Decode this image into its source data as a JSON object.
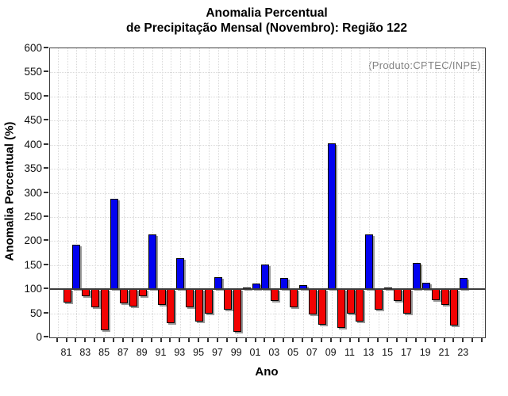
{
  "title": {
    "line1": "Anomalia Percentual",
    "line2": "de Precipitação Mensal (Novembro): Região 122"
  },
  "annotation": "(Produto:CPTEC/INPE)",
  "axes": {
    "y_label": "Anomalia Percentual (%)",
    "x_label": "Ano",
    "x_tick_labels": [
      "81",
      "83",
      "85",
      "87",
      "89",
      "91",
      "93",
      "95",
      "97",
      "99",
      "01",
      "03",
      "05",
      "07",
      "09",
      "11",
      "13",
      "15",
      "17",
      "19",
      "21",
      "23"
    ]
  },
  "colors": {
    "bar_above": "#0202f0",
    "bar_below": "#f20202",
    "baseline": "#3c3c3c",
    "grid": "#d9d9d9",
    "annotation_text": "#828282",
    "tick": "#333333"
  },
  "chart_data": {
    "type": "bar",
    "title": "Anomalia Percentual de Precipitação Mensal (Novembro): Região 122",
    "xlabel": "Ano",
    "ylabel": "Anomalia Percentual (%)",
    "annotation": "(Produto:CPTEC/INPE)",
    "ylim": [
      0,
      600
    ],
    "ytick_step": 50,
    "grid": true,
    "baseline": 100,
    "color_rule": "blue if value > 100, red if value < 100",
    "x": [
      1981,
      1982,
      1983,
      1984,
      1985,
      1986,
      1987,
      1988,
      1989,
      1990,
      1991,
      1992,
      1993,
      1994,
      1995,
      1996,
      1997,
      1998,
      1999,
      2000,
      2001,
      2002,
      2003,
      2004,
      2005,
      2006,
      2007,
      2008,
      2009,
      2010,
      2011,
      2012,
      2013,
      2014,
      2015,
      2016,
      2017,
      2018,
      2019,
      2020,
      2021,
      2022,
      2023
    ],
    "values": [
      73,
      193,
      85,
      63,
      15,
      288,
      70,
      64,
      85,
      213,
      68,
      30,
      165,
      63,
      33,
      50,
      125,
      58,
      12,
      104,
      112,
      151,
      76,
      123,
      62,
      108,
      48,
      27,
      402,
      19,
      50,
      33,
      214,
      57,
      104,
      76,
      50,
      155,
      114,
      77,
      67,
      24,
      123
    ]
  }
}
